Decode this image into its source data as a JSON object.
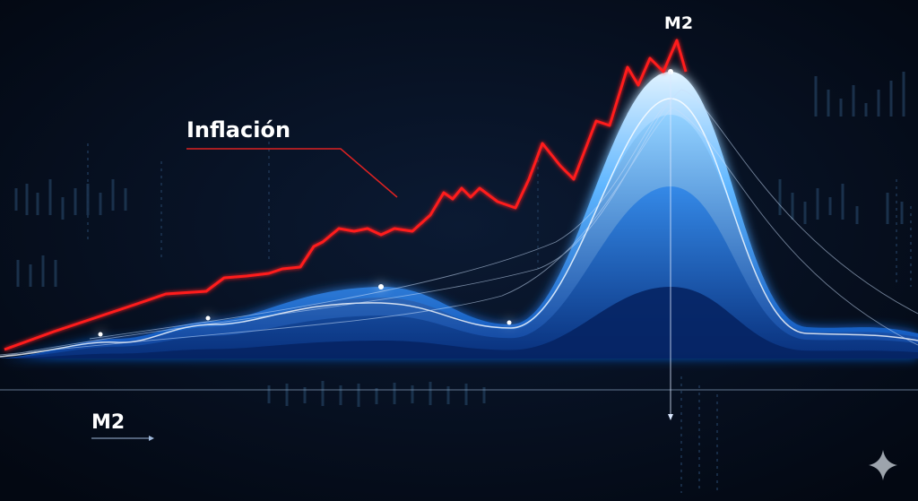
{
  "labels": {
    "inflation": "Inflación",
    "m2_peak": "M2",
    "m2_axis": "M2"
  }
}
